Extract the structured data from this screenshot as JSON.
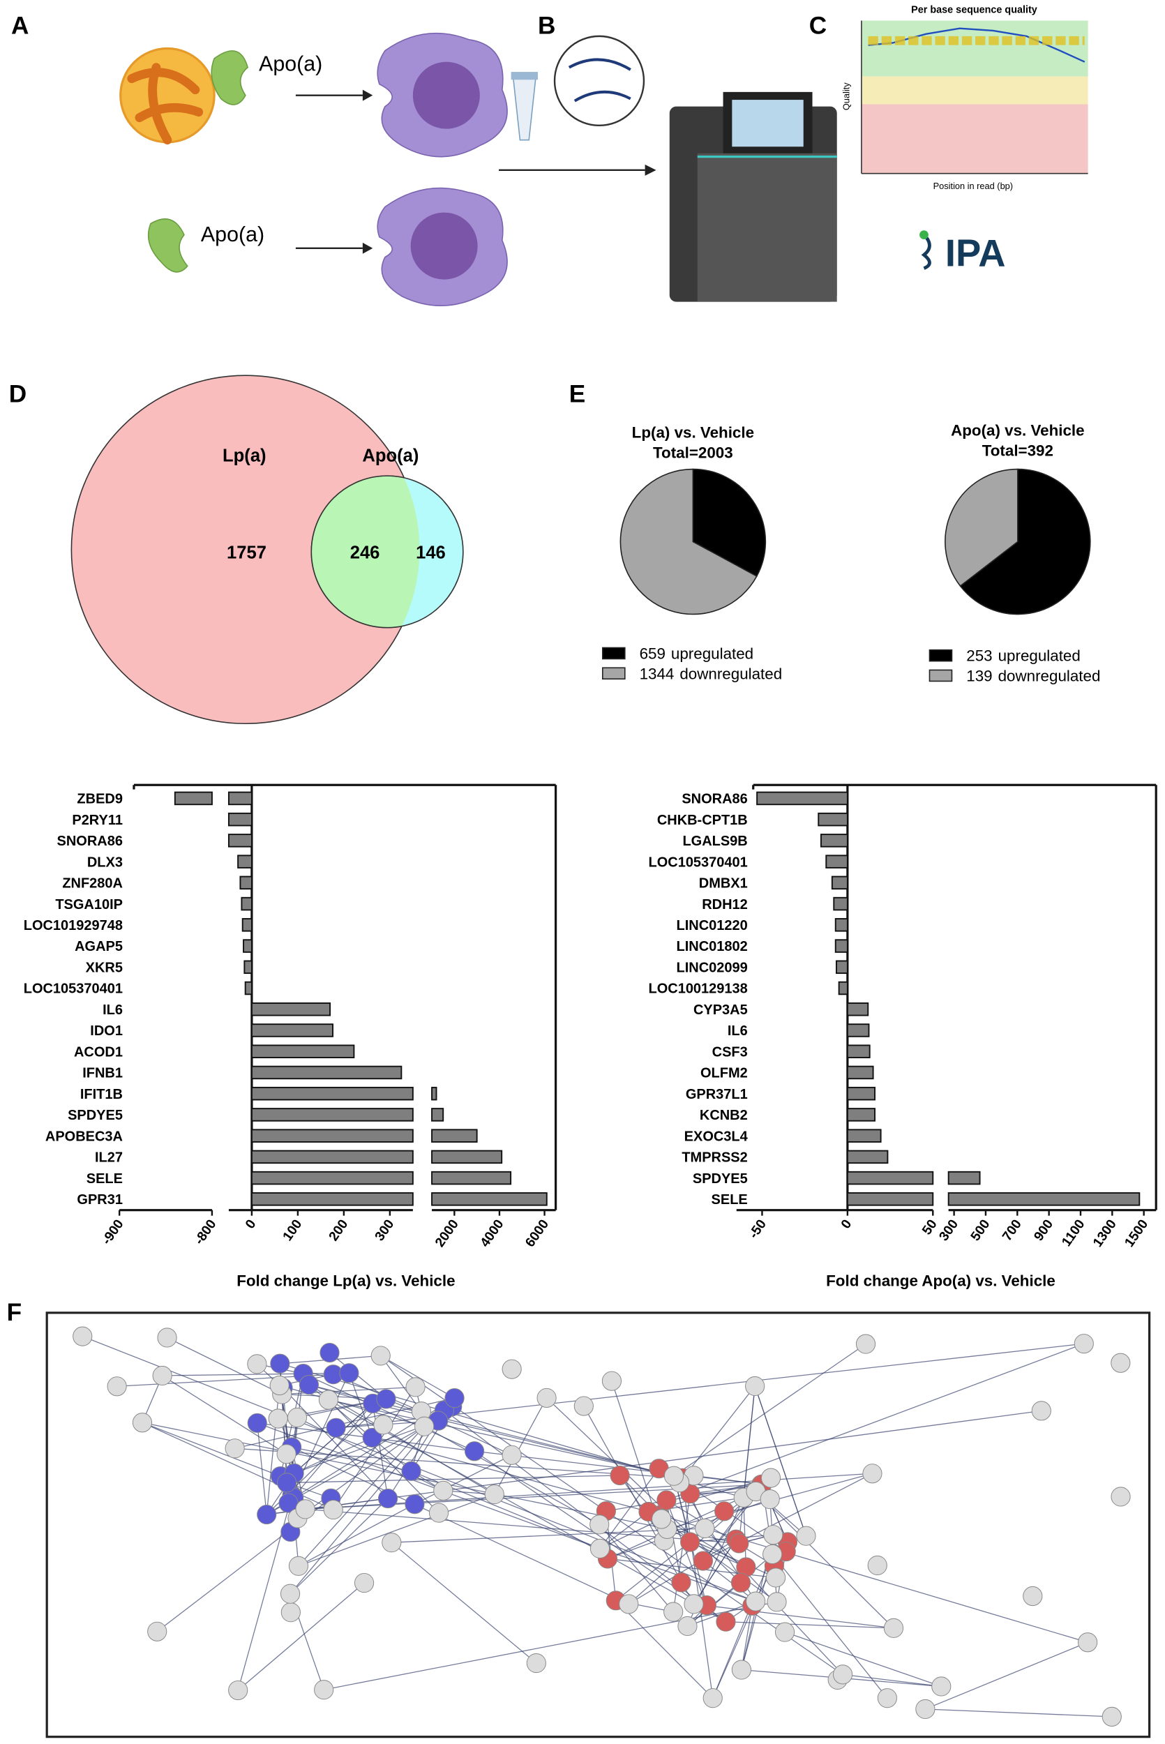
{
  "panel_labels": [
    "A",
    "B",
    "C",
    "D",
    "E",
    "F"
  ],
  "panel_a": {
    "labels": [
      "Apo(a)",
      "Apo(a)"
    ]
  },
  "panel_c": {
    "title": "Per base sequence quality",
    "ylabel": "Quality",
    "xlabel": "Position in read (bp)",
    "logo": "IPA"
  },
  "chart_data": [
    {
      "type": "venn",
      "sets": [
        {
          "name": "Lp(a)",
          "color": "#f9bdbd"
        },
        {
          "name": "Apo(a)",
          "color": "#b5fbfb"
        }
      ],
      "overlap_color": "#b9f5b5",
      "values": [
        1757,
        246,
        146
      ]
    },
    {
      "type": "pie",
      "title": "Lp(a) vs. Vehicle",
      "subtitle": "Total=2003",
      "categories": [
        "upregulated",
        "downregulated"
      ],
      "values": [
        659,
        1344
      ],
      "colors": [
        "#000000",
        "#a6a6a6"
      ]
    },
    {
      "type": "pie",
      "title": "Apo(a) vs. Vehicle",
      "subtitle": "Total=392",
      "categories": [
        "upregulated",
        "downregulated"
      ],
      "values": [
        253,
        139
      ],
      "colors": [
        "#000000",
        "#a6a6a6"
      ]
    },
    {
      "type": "hbar",
      "xlabel": "Fold change Lp(a) vs. Vehicle",
      "color": "#7f7f7f",
      "categories": [
        "ZBED9",
        "P2RY11",
        "SNORA86",
        "DLX3",
        "ZNF280A",
        "TSGA10IP",
        "LOC101929748",
        "AGAP5",
        "XKR5",
        "LOC105370401",
        "IL6",
        "IDO1",
        "ACOD1",
        "IFNB1",
        "IFIT1B",
        "SPDYE5",
        "APOBEC3A",
        "IL27",
        "SELE",
        "GPR31"
      ],
      "values": [
        -840,
        -60,
        -55,
        -30,
        -25,
        -22,
        -20,
        -18,
        -16,
        -14,
        170,
        176,
        222,
        325,
        1200,
        1500,
        3000,
        4100,
        4500,
        6100
      ],
      "xlim_segments": [
        [
          -900,
          -800
        ],
        [
          -50,
          350
        ],
        [
          1000,
          6200
        ]
      ],
      "xtick_segments": [
        [
          -900,
          -800
        ],
        [
          0,
          100,
          200,
          300
        ],
        [
          2000,
          4000,
          6000
        ]
      ]
    },
    {
      "type": "hbar",
      "xlabel": "Fold change Apo(a) vs. Vehicle",
      "color": "#7f7f7f",
      "categories": [
        "SNORA86",
        "CHKB-CPT1B",
        "LGALS9B",
        "LOC105370401",
        "DMBX1",
        "RDH12",
        "LINC01220",
        "LINC01802",
        "LINC02099",
        "LOC100129138",
        "CYP3A5",
        "IL6",
        "CSF3",
        "OLFM2",
        "GPR37L1",
        "KCNB2",
        "EXOC3L4",
        "TMPRSS2",
        "SPDYE5",
        "SELE"
      ],
      "values": [
        -53,
        -17,
        -15.5,
        -12.5,
        -9,
        -8,
        -7,
        -7,
        -6.5,
        -5,
        12,
        12.5,
        13,
        15,
        16,
        16,
        19.5,
        23.5,
        463,
        1472
      ],
      "xlim_segments": [
        [
          -65,
          50
        ],
        [
          265,
          1535
        ]
      ],
      "xtick_segments": [
        [
          -50,
          0,
          50
        ],
        [
          300,
          500,
          700,
          900,
          1100,
          1300,
          1500
        ]
      ]
    }
  ]
}
